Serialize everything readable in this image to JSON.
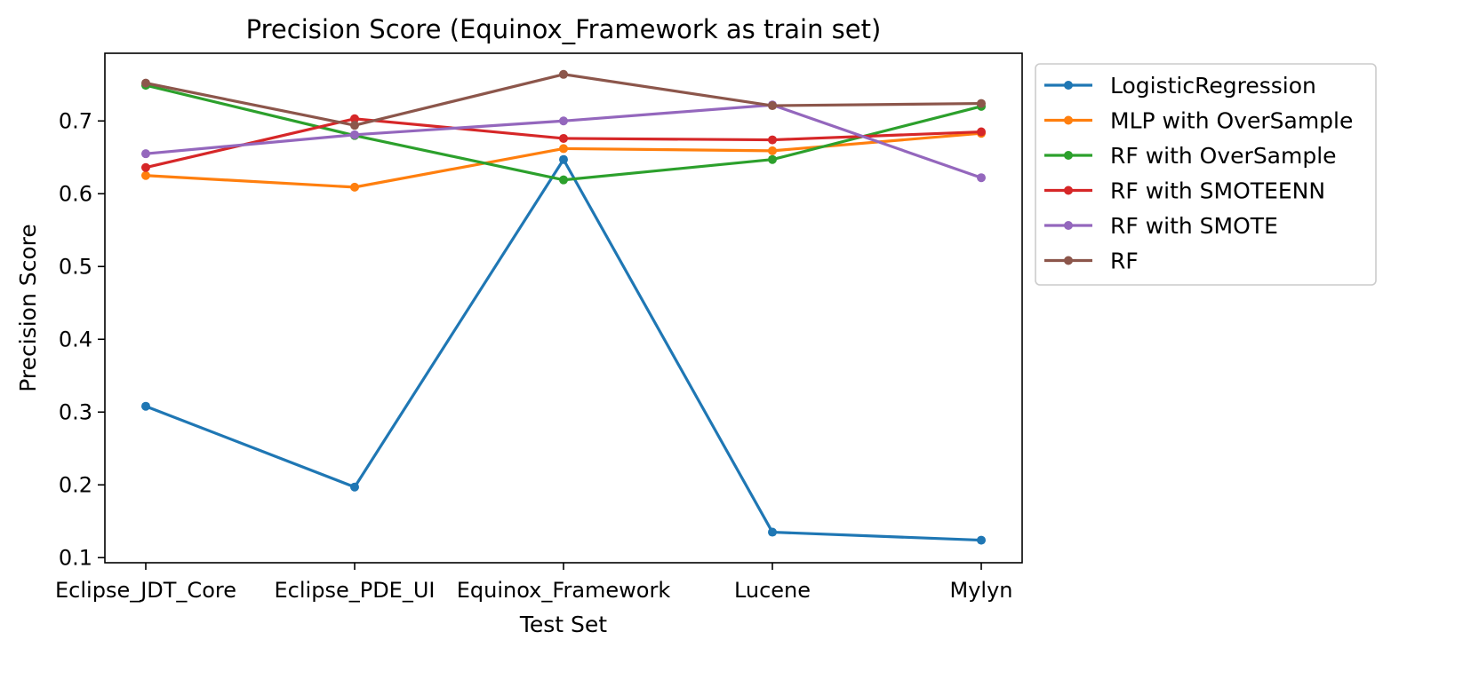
{
  "chart_data": {
    "type": "line",
    "title": "Precision Score (Equinox_Framework as train set)",
    "xlabel": "Test Set",
    "ylabel": "Precision Score",
    "categories": [
      "Eclipse_JDT_Core",
      "Eclipse_PDE_UI",
      "Equinox_Framework",
      "Lucene",
      "Mylyn"
    ],
    "ylim": [
      0.093,
      0.793
    ],
    "yticks": [
      0.1,
      0.2,
      0.3,
      0.4,
      0.5,
      0.6,
      0.7
    ],
    "ytick_labels": [
      "0.1",
      "0.2",
      "0.3",
      "0.4",
      "0.5",
      "0.6",
      "0.7"
    ],
    "grid": false,
    "legend_position": "outside-right-top",
    "series": [
      {
        "name": "LogisticRegression",
        "color": "#1f77b4",
        "values": [
          0.308,
          0.197,
          0.647,
          0.135,
          0.124
        ]
      },
      {
        "name": "MLP with OverSample",
        "color": "#ff7f0e",
        "values": [
          0.625,
          0.609,
          0.662,
          0.659,
          0.683
        ]
      },
      {
        "name": "RF with OverSample",
        "color": "#2ca02c",
        "values": [
          0.749,
          0.68,
          0.619,
          0.647,
          0.72
        ]
      },
      {
        "name": "RF with SMOTEENN",
        "color": "#d62728",
        "values": [
          0.636,
          0.703,
          0.676,
          0.674,
          0.685
        ]
      },
      {
        "name": "RF with SMOTE",
        "color": "#9467bd",
        "values": [
          0.655,
          0.681,
          0.7,
          0.722,
          0.622
        ]
      },
      {
        "name": "RF",
        "color": "#8c564b",
        "values": [
          0.752,
          0.694,
          0.764,
          0.721,
          0.724
        ]
      }
    ]
  }
}
